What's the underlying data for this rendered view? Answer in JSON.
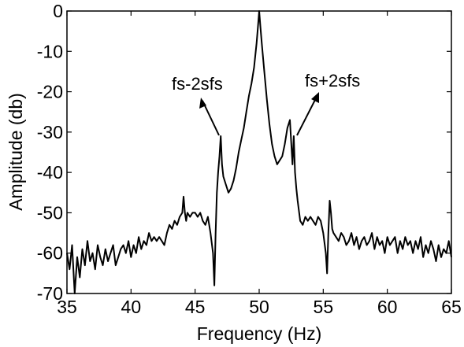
{
  "chart_data": {
    "type": "line",
    "title": "",
    "xlabel": "Frequency (Hz)",
    "ylabel": "Amplitude (db)",
    "xlim": [
      35,
      65
    ],
    "ylim": [
      -70,
      0
    ],
    "xticks": [
      35,
      40,
      45,
      50,
      55,
      60,
      65
    ],
    "yticks": [
      0,
      -10,
      -20,
      -30,
      -40,
      -50,
      -60,
      -70
    ],
    "xtick_labels": [
      "35",
      "40",
      "45",
      "50",
      "55",
      "60",
      "65"
    ],
    "ytick_labels": [
      "0",
      "-10",
      "-20",
      "-30",
      "-40",
      "-50",
      "-60",
      "-70"
    ],
    "grid": false,
    "line_color": "#000000",
    "series": [
      {
        "x": [
          35.0,
          35.2,
          35.4,
          35.6,
          35.8,
          36.0,
          36.2,
          36.4,
          36.6,
          36.8,
          37.0,
          37.2,
          37.4,
          37.6,
          37.8,
          38.0,
          38.2,
          38.4,
          38.6,
          38.8,
          39.0,
          39.2,
          39.4,
          39.6,
          39.8,
          40.0,
          40.2,
          40.4,
          40.6,
          40.8,
          41.0,
          41.2,
          41.4,
          41.6,
          41.8,
          42.0,
          42.2,
          42.4,
          42.6,
          42.8,
          43.0,
          43.2,
          43.4,
          43.6,
          43.8,
          44.0,
          44.1,
          44.2,
          44.3,
          44.4,
          44.6,
          44.8,
          45.0,
          45.2,
          45.4,
          45.6,
          45.8,
          46.0,
          46.2,
          46.4,
          46.5,
          46.6,
          46.7,
          46.8,
          46.9,
          47.0,
          47.1,
          47.2,
          47.4,
          47.6,
          47.8,
          48.0,
          48.2,
          48.4,
          48.6,
          48.8,
          49.0,
          49.2,
          49.4,
          49.6,
          49.8,
          49.9,
          50.0,
          50.1,
          50.2,
          50.4,
          50.6,
          50.8,
          51.0,
          51.2,
          51.4,
          51.6,
          51.8,
          52.0,
          52.2,
          52.4,
          52.6,
          52.7,
          52.8,
          52.9,
          53.0,
          53.2,
          53.4,
          53.6,
          53.8,
          54.0,
          54.2,
          54.4,
          54.6,
          54.8,
          55.0,
          55.2,
          55.3,
          55.4,
          55.5,
          55.6,
          55.7,
          55.8,
          56.0,
          56.2,
          56.4,
          56.6,
          56.8,
          57.0,
          57.2,
          57.4,
          57.6,
          57.8,
          58.0,
          58.2,
          58.4,
          58.6,
          58.8,
          59.0,
          59.2,
          59.4,
          59.6,
          59.8,
          60.0,
          60.2,
          60.4,
          60.6,
          60.8,
          61.0,
          61.2,
          61.4,
          61.6,
          61.8,
          62.0,
          62.2,
          62.4,
          62.6,
          62.8,
          63.0,
          63.2,
          63.4,
          63.6,
          63.8,
          64.0,
          64.2,
          64.4,
          64.6,
          64.8,
          65.0
        ],
        "y": [
          -60,
          -64,
          -58,
          -70,
          -61,
          -66,
          -59,
          -63,
          -57,
          -62,
          -60,
          -64,
          -58,
          -61,
          -63,
          -59,
          -62,
          -60,
          -58,
          -63,
          -61,
          -59,
          -58,
          -60,
          -57,
          -61,
          -58,
          -60,
          -56,
          -59,
          -57,
          -58,
          -55,
          -57,
          -56,
          -57,
          -56,
          -57,
          -58,
          -55,
          -53,
          -54,
          -52,
          -53,
          -51,
          -50,
          -46,
          -50,
          -52,
          -50,
          -51,
          -50,
          -50,
          -51,
          -50,
          -52,
          -53,
          -51,
          -55,
          -60,
          -68,
          -55,
          -45,
          -40,
          -36,
          -31,
          -38,
          -41,
          -43,
          -45,
          -44,
          -42,
          -39,
          -35,
          -32,
          -29,
          -25,
          -21,
          -18,
          -14,
          -8,
          -4,
          0,
          -4,
          -8,
          -15,
          -22,
          -28,
          -33,
          -36,
          -38,
          -37,
          -36,
          -33,
          -29,
          -27,
          -38,
          -31,
          -40,
          -44,
          -47,
          -52,
          -53,
          -51,
          -52,
          -51,
          -52,
          -53,
          -51,
          -52,
          -55,
          -60,
          -65,
          -55,
          -47,
          -50,
          -54,
          -55,
          -56,
          -57,
          -55,
          -56,
          -58,
          -57,
          -55,
          -58,
          -56,
          -59,
          -57,
          -56,
          -58,
          -57,
          -55,
          -59,
          -56,
          -58,
          -57,
          -60,
          -56,
          -58,
          -57,
          -56,
          -60,
          -57,
          -59,
          -56,
          -58,
          -57,
          -60,
          -57,
          -59,
          -56,
          -61,
          -58,
          -60,
          -57,
          -59,
          -62,
          -58,
          -61,
          -59,
          -60,
          -57,
          -61
        ]
      }
    ],
    "annotations": [
      {
        "text": "fs-2sfs",
        "arrow_to": [
          46.8,
          -33
        ]
      },
      {
        "text": "fs+2sfs",
        "arrow_to": [
          53.0,
          -33
        ]
      }
    ]
  }
}
